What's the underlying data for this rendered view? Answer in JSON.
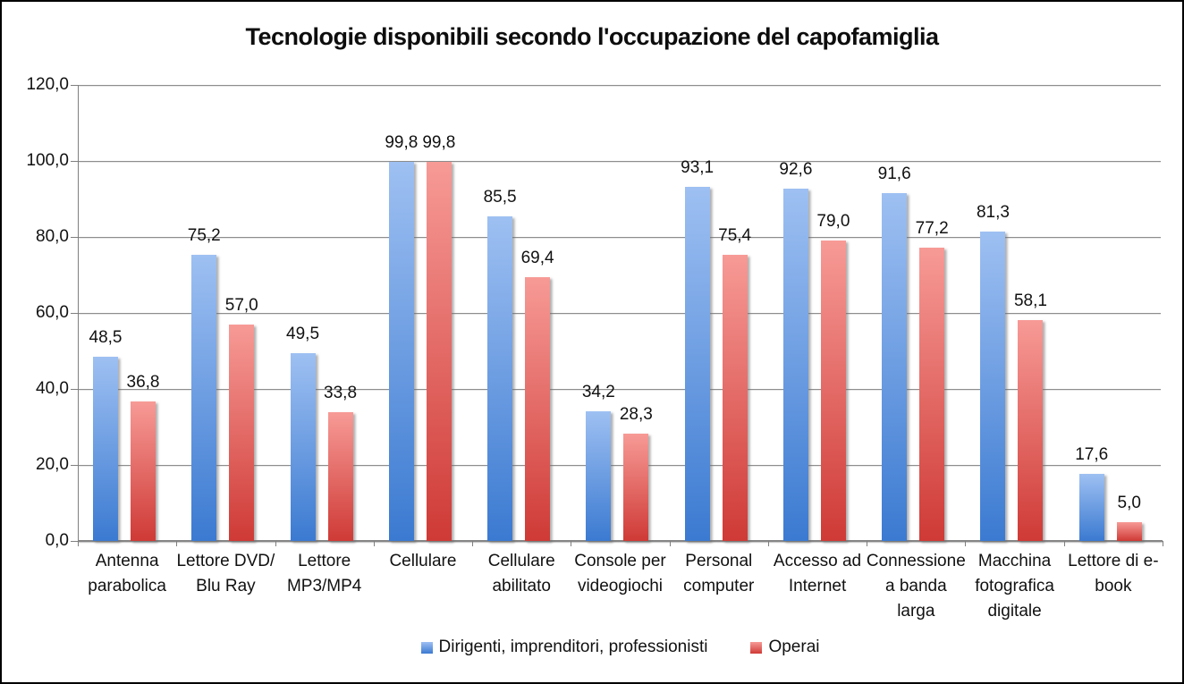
{
  "chart_data": {
    "type": "bar",
    "title": "Tecnologie disponibili secondo l'occupazione del capofamiglia",
    "categories": [
      "Antenna parabolica",
      "Lettore DVD/Blu Ray",
      "Lettore MP3/MP4",
      "Cellulare",
      "Cellulare abilitato",
      "Console per videogiochi",
      "Personal computer",
      "Accesso ad Internet",
      "Connessione a banda larga",
      "Macchina fotografica digitale",
      "Lettore di e-book"
    ],
    "category_label_lines": [
      [
        "Antenna",
        "parabolica"
      ],
      [
        "Lettore DVD/",
        "Blu Ray"
      ],
      [
        "Lettore",
        "MP3/MP4"
      ],
      [
        "Cellulare"
      ],
      [
        "Cellulare",
        "abilitato"
      ],
      [
        "Console per",
        "videogiochi"
      ],
      [
        "Personal",
        "computer"
      ],
      [
        "Accesso ad",
        "Internet"
      ],
      [
        "Connessione",
        "a banda",
        "larga"
      ],
      [
        "Macchina",
        "fotografica",
        "digitale"
      ],
      [
        "Lettore di e-",
        "book"
      ]
    ],
    "series": [
      {
        "name": "Dirigenti, imprenditori, professionisti",
        "color_top": "#9ec0f2",
        "color_bottom": "#3b7ad1",
        "values": [
          48.5,
          75.2,
          49.5,
          99.8,
          85.5,
          34.2,
          93.1,
          92.6,
          91.6,
          81.3,
          17.6
        ]
      },
      {
        "name": "Operai",
        "color_top": "#f79a96",
        "color_bottom": "#cf3a36",
        "values": [
          36.8,
          57.0,
          33.8,
          99.8,
          69.4,
          28.3,
          75.4,
          79.0,
          77.2,
          58.1,
          5.0
        ]
      }
    ],
    "y_axis": {
      "min": 0,
      "max": 120,
      "step": 20,
      "decimal_separator": ","
    },
    "y_tick_labels": [
      "0,0",
      "20,0",
      "40,0",
      "60,0",
      "80,0",
      "100,0",
      "120,0"
    ],
    "data_labels": true,
    "grid": true,
    "legend_position": "bottom",
    "colors": {
      "gridline": "#8e8e8e",
      "axis": "#7f7f7f",
      "text": "#111111",
      "background": "#ffffff",
      "frame_border": "#000000"
    }
  }
}
